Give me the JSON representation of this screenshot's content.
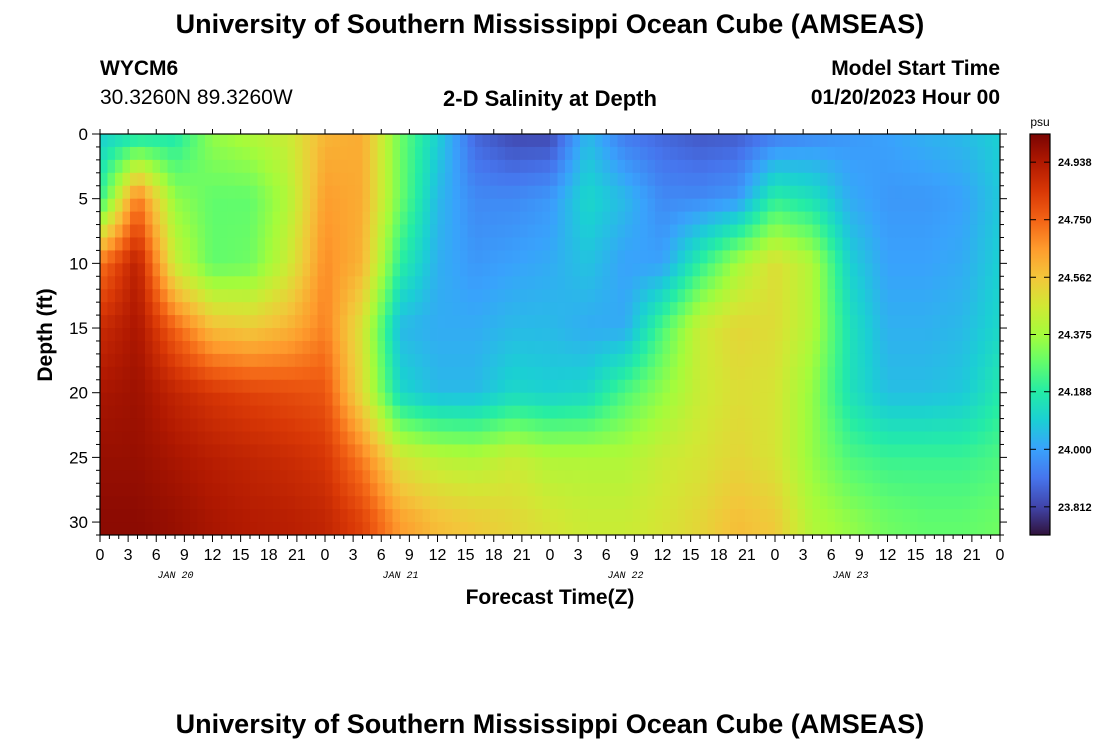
{
  "header": {
    "title": "University of Southern Mississippi Ocean Cube (AMSEAS)",
    "station_id": "WYCM6",
    "station_coords": "30.3260N  89.3260W",
    "subtitle": "2-D Salinity at Depth",
    "model_start_label": "Model Start Time",
    "model_start_value": "01/20/2023 Hour 00"
  },
  "footer": {
    "title_repeat": "University of Southern Mississippi Ocean Cube (AMSEAS)"
  },
  "colors": {
    "colormap": [
      "#30123b",
      "#4145ab",
      "#4675ed",
      "#39a2fc",
      "#1bcfd4",
      "#24eca6",
      "#61fc6c",
      "#a4fc3b",
      "#d1e834",
      "#f3c63a",
      "#fe9b2d",
      "#f36315",
      "#d93806",
      "#b11901",
      "#7a0402"
    ]
  },
  "chart_data": {
    "type": "heatmap",
    "xlabel": "Forecast Time(Z)",
    "ylabel": "Depth (ft)",
    "x_tick_labels": [
      "0",
      "3",
      "6",
      "9",
      "12",
      "15",
      "18",
      "21",
      "0",
      "3",
      "6",
      "9",
      "12",
      "15",
      "18",
      "21",
      "0",
      "3",
      "6",
      "9",
      "12",
      "15",
      "18",
      "21",
      "0",
      "3",
      "6",
      "9",
      "12",
      "15",
      "18",
      "21",
      "0"
    ],
    "date_labels": [
      "JAN 20",
      "JAN 21",
      "JAN 22",
      "JAN 23"
    ],
    "x_range_hours": [
      0,
      96
    ],
    "ylim": [
      31,
      0
    ],
    "y_ticks": [
      0,
      5,
      10,
      15,
      20,
      25,
      30
    ],
    "colorbar": {
      "unit": "psu",
      "range": [
        23.72,
        25.03
      ],
      "tick_labels": [
        "24.938",
        "24.750",
        "24.562",
        "24.375",
        "24.188",
        "24.000",
        "23.812"
      ]
    },
    "x_hours": [
      0,
      4,
      8,
      12,
      16,
      20,
      24,
      28,
      32,
      36,
      40,
      44,
      48,
      52,
      56,
      60,
      64,
      68,
      72,
      76,
      80,
      84,
      88,
      92,
      96
    ],
    "depths_ft": [
      0,
      5,
      10,
      15,
      20,
      25,
      30
    ],
    "values_psu": [
      [
        24.1,
        24.15,
        24.17,
        24.35,
        24.4,
        24.45,
        24.6,
        24.62,
        24.3,
        24.1,
        23.88,
        23.82,
        23.82,
        24.05,
        23.92,
        23.88,
        23.85,
        23.86,
        23.92,
        23.95,
        23.98,
        24.0,
        24.03,
        24.05,
        24.1
      ],
      [
        24.2,
        24.72,
        24.35,
        24.28,
        24.28,
        24.4,
        24.65,
        24.62,
        24.3,
        24.05,
        23.95,
        23.95,
        23.98,
        24.12,
        24.05,
        23.95,
        23.95,
        23.98,
        24.2,
        24.15,
        24.02,
        23.98,
        23.98,
        24.0,
        24.08
      ],
      [
        24.72,
        24.92,
        24.45,
        24.28,
        24.3,
        24.45,
        24.68,
        24.6,
        24.2,
        24.03,
        23.98,
        24.0,
        24.02,
        24.07,
        24.0,
        24.0,
        24.2,
        24.38,
        24.5,
        24.4,
        24.1,
        24.0,
        24.0,
        24.02,
        24.1
      ],
      [
        24.88,
        24.95,
        24.75,
        24.58,
        24.55,
        24.6,
        24.7,
        24.48,
        24.05,
        24.02,
        24.02,
        24.05,
        24.05,
        24.02,
        24.02,
        24.25,
        24.45,
        24.52,
        24.5,
        24.4,
        24.15,
        24.03,
        24.03,
        24.05,
        24.12
      ],
      [
        24.95,
        24.97,
        24.9,
        24.85,
        24.82,
        24.8,
        24.78,
        24.5,
        24.12,
        24.05,
        24.05,
        24.12,
        24.1,
        24.12,
        24.25,
        24.35,
        24.45,
        24.5,
        24.48,
        24.35,
        24.15,
        24.06,
        24.06,
        24.08,
        24.18
      ],
      [
        24.98,
        24.98,
        24.95,
        24.92,
        24.9,
        24.88,
        24.85,
        24.7,
        24.48,
        24.42,
        24.4,
        24.45,
        24.4,
        24.4,
        24.4,
        24.45,
        24.48,
        24.52,
        24.48,
        24.35,
        24.25,
        24.22,
        24.22,
        24.22,
        24.25
      ],
      [
        25.0,
        25.0,
        24.98,
        24.95,
        24.93,
        24.92,
        24.9,
        24.82,
        24.65,
        24.58,
        24.55,
        24.52,
        24.48,
        24.45,
        24.45,
        24.48,
        24.52,
        24.58,
        24.55,
        24.4,
        24.35,
        24.3,
        24.28,
        24.28,
        24.3
      ]
    ]
  }
}
